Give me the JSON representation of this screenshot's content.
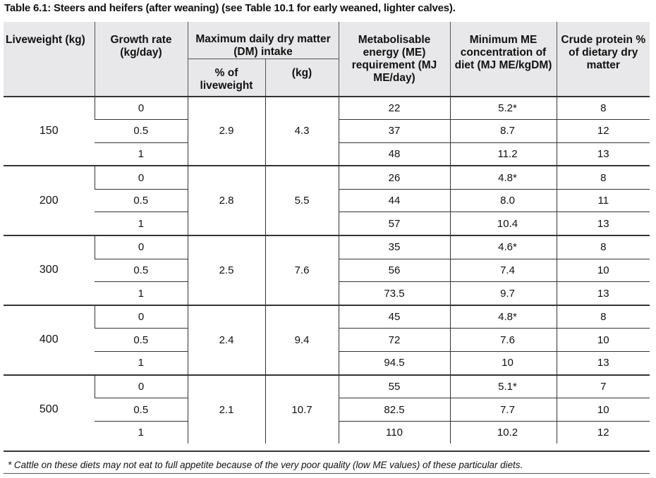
{
  "title": "Table 6.1: Steers and heifers (after weaning) (see Table 10.1 for early weaned, lighter calves).",
  "headers": {
    "liveweight": "Liveweight (kg)",
    "growth_rate": "Growth rate (kg/day)",
    "max_intake": "Maximum daily dry matter (DM) intake",
    "pct_liveweight": "% of liveweight",
    "kg": "(kg)",
    "me_requirement": "Metabolisable energy (ME) requirement (MJ ME/day)",
    "min_me": "Minimum ME concentration of diet (MJ ME/kgDM)",
    "crude_protein": "Crude protein % of dietary dry matter"
  },
  "groups": [
    {
      "liveweight": "150",
      "pct": "2.9",
      "kg": "4.3",
      "rows": [
        {
          "growth": "0",
          "me": "22",
          "min_me": "5.2*",
          "cp": "8"
        },
        {
          "growth": "0.5",
          "me": "37",
          "min_me": "8.7",
          "cp": "12"
        },
        {
          "growth": "1",
          "me": "48",
          "min_me": "11.2",
          "cp": "13"
        }
      ]
    },
    {
      "liveweight": "200",
      "pct": "2.8",
      "kg": "5.5",
      "rows": [
        {
          "growth": "0",
          "me": "26",
          "min_me": "4.8*",
          "cp": "8"
        },
        {
          "growth": "0.5",
          "me": "44",
          "min_me": "8.0",
          "cp": "11"
        },
        {
          "growth": "1",
          "me": "57",
          "min_me": "10.4",
          "cp": "13"
        }
      ]
    },
    {
      "liveweight": "300",
      "pct": "2.5",
      "kg": "7.6",
      "rows": [
        {
          "growth": "0",
          "me": "35",
          "min_me": "4.6*",
          "cp": "8"
        },
        {
          "growth": "0.5",
          "me": "56",
          "min_me": "7.4",
          "cp": "10"
        },
        {
          "growth": "1",
          "me": "73.5",
          "min_me": "9.7",
          "cp": "13"
        }
      ]
    },
    {
      "liveweight": "400",
      "pct": "2.4",
      "kg": "9.4",
      "rows": [
        {
          "growth": "0",
          "me": "45",
          "min_me": "4.8*",
          "cp": "8"
        },
        {
          "growth": "0.5",
          "me": "72",
          "min_me": "7.6",
          "cp": "10"
        },
        {
          "growth": "1",
          "me": "94.5",
          "min_me": "10",
          "cp": "13"
        }
      ]
    },
    {
      "liveweight": "500",
      "pct": "2.1",
      "kg": "10.7",
      "rows": [
        {
          "growth": "0",
          "me": "55",
          "min_me": "5.1*",
          "cp": "7"
        },
        {
          "growth": "0.5",
          "me": "82.5",
          "min_me": "7.7",
          "cp": "10"
        },
        {
          "growth": "1",
          "me": "110",
          "min_me": "10.2",
          "cp": "12"
        }
      ]
    }
  ],
  "footnote": "* Cattle on these diets may not eat to full appetite because of the very poor quality (low ME values) of these particular diets."
}
